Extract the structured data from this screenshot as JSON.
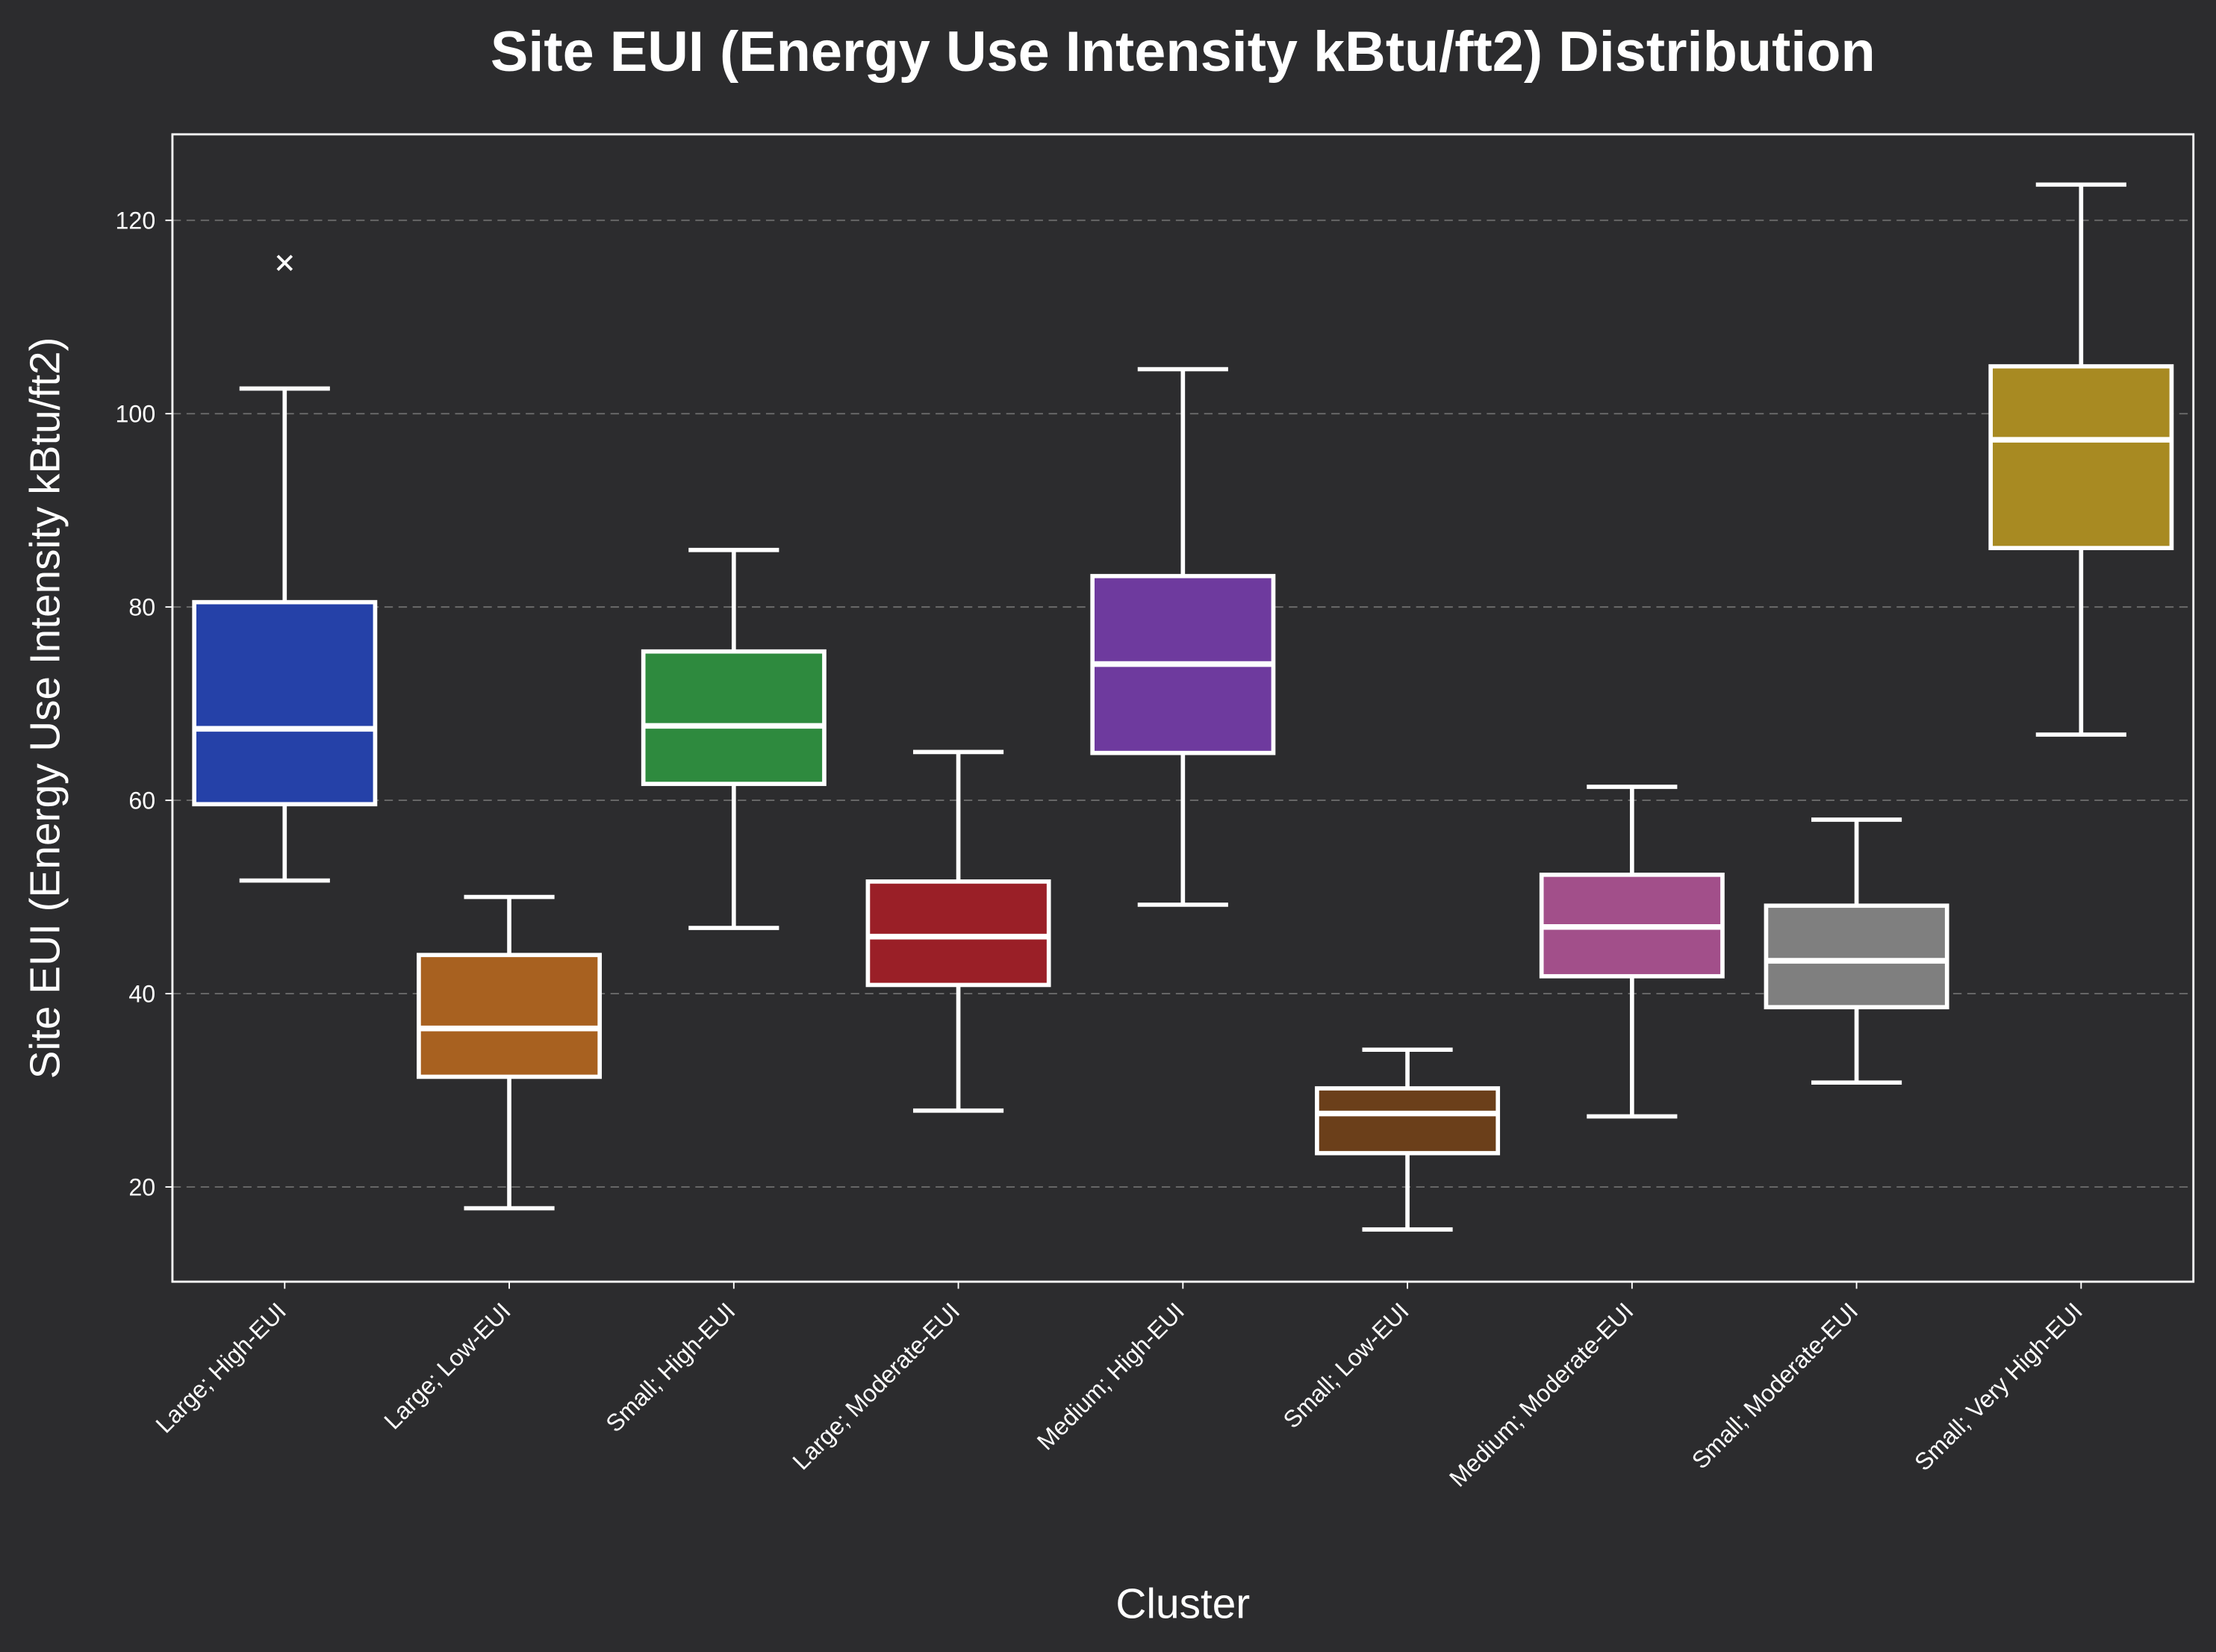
{
  "chart_data": {
    "type": "box",
    "title": "Site EUI (Energy Use Intensity kBtu/ft2) Distribution",
    "xlabel": "Cluster",
    "ylabel": "Site EUI (Energy Use Intensity kBtu/ft2)",
    "ylim": [
      10.2,
      128.9
    ],
    "yticks": [
      20,
      40,
      60,
      80,
      100,
      120
    ],
    "grid": "y-dashed",
    "background": "#2c2c2e",
    "categories": [
      "Large; High-EUI",
      "Large; Low-EUI",
      "Small; High-EUI",
      "Large; Moderate-EUI",
      "Medium; High-EUI",
      "Small; Low-EUI",
      "Medium; Moderate-EUI",
      "Small; Moderate-EUI",
      "Small; Very High-EUI"
    ],
    "boxes": [
      {
        "whislo": 51.7,
        "q1": 59.6,
        "med": 67.4,
        "q3": 80.5,
        "whishi": 102.6,
        "fliers": [
          115.6
        ],
        "color": "#2541a8"
      },
      {
        "whislo": 17.8,
        "q1": 31.4,
        "med": 36.4,
        "q3": 44.0,
        "whishi": 50.0,
        "fliers": [],
        "color": "#a86120"
      },
      {
        "whislo": 46.8,
        "q1": 61.7,
        "med": 67.7,
        "q3": 75.4,
        "whishi": 85.9,
        "fliers": [],
        "color": "#2e8a3e"
      },
      {
        "whislo": 27.9,
        "q1": 40.9,
        "med": 45.9,
        "q3": 51.6,
        "whishi": 65.0,
        "fliers": [],
        "color": "#9a1f27"
      },
      {
        "whislo": 49.2,
        "q1": 64.9,
        "med": 74.1,
        "q3": 83.2,
        "whishi": 104.6,
        "fliers": [],
        "color": "#6e3a9e"
      },
      {
        "whislo": 15.6,
        "q1": 23.5,
        "med": 27.6,
        "q3": 30.2,
        "whishi": 34.2,
        "fliers": [],
        "color": "#6b3f1a"
      },
      {
        "whislo": 27.3,
        "q1": 41.8,
        "med": 46.9,
        "q3": 52.3,
        "whishi": 61.4,
        "fliers": [],
        "color": "#a24f8a"
      },
      {
        "whislo": 30.8,
        "q1": 38.6,
        "med": 43.4,
        "q3": 49.1,
        "whishi": 58.0,
        "fliers": [],
        "color": "#7f7f7f"
      },
      {
        "whislo": 66.8,
        "q1": 86.1,
        "med": 97.3,
        "q3": 104.9,
        "whishi": 123.7,
        "fliers": [],
        "color": "#a88a22"
      }
    ]
  }
}
